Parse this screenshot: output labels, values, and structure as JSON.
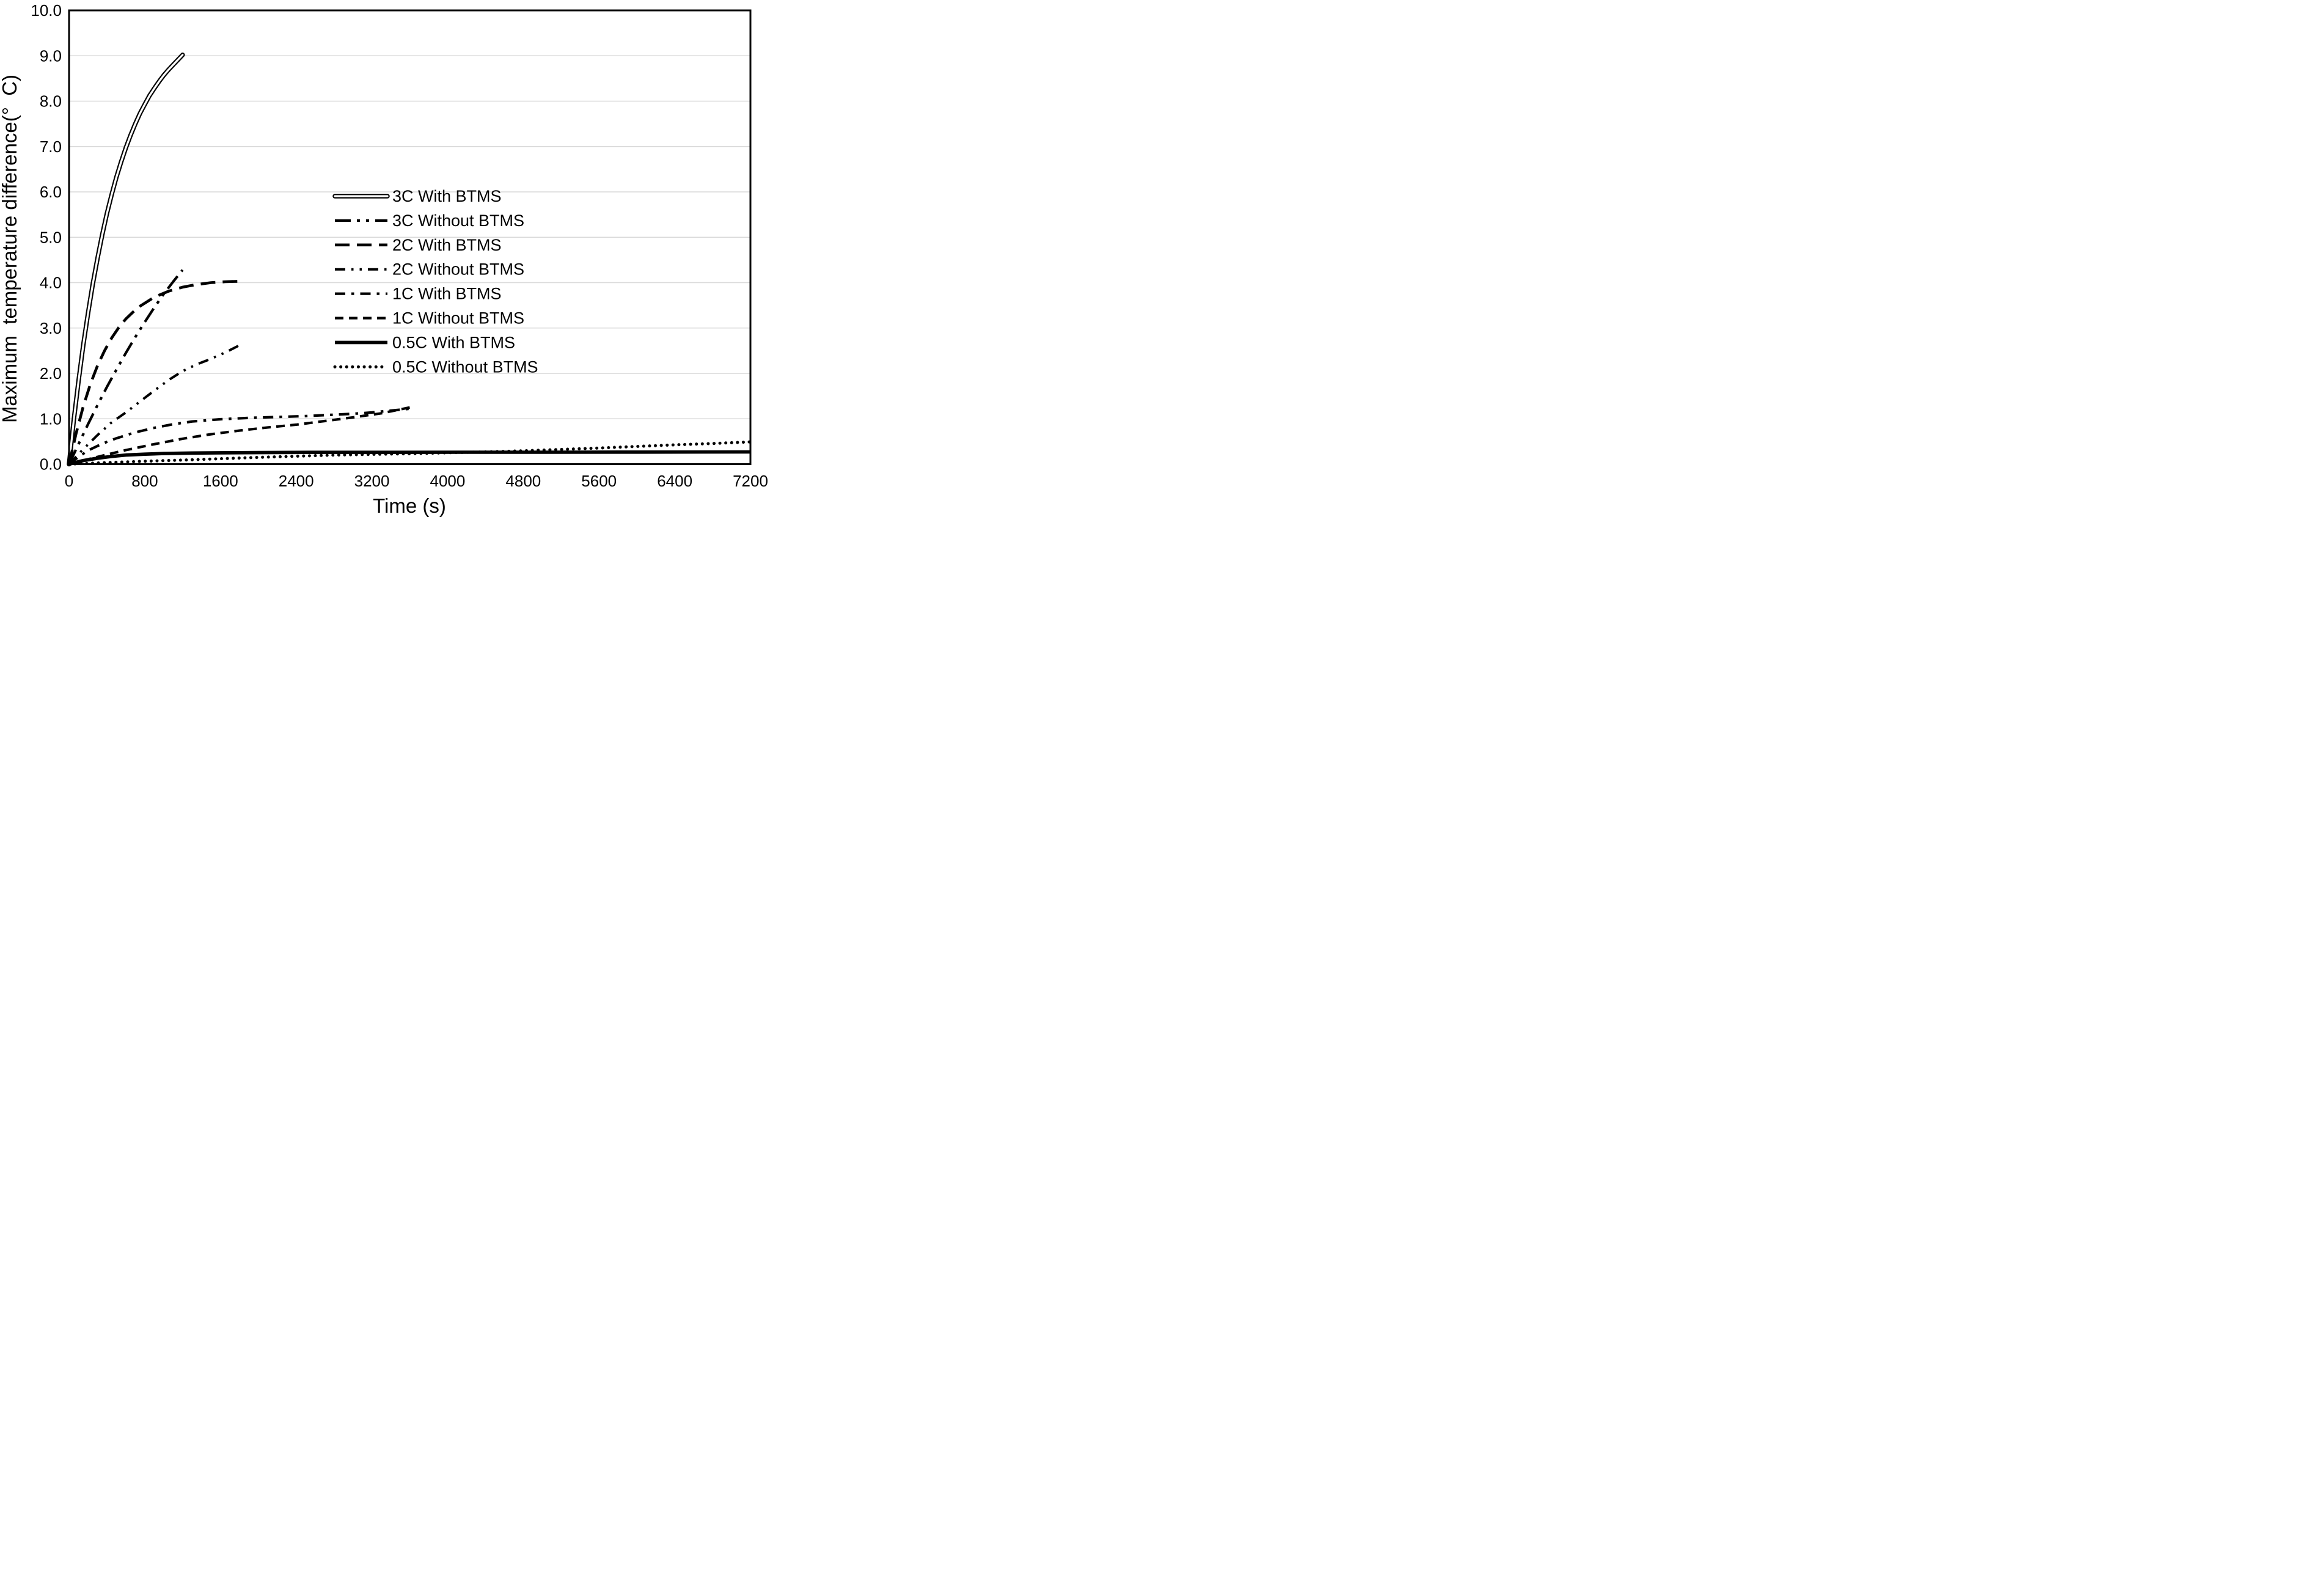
{
  "chart_data": {
    "type": "line",
    "title": "",
    "xlabel": "Time (s)",
    "ylabel": "Maximum  temperature difference(°  C)",
    "xlim": [
      0,
      7200
    ],
    "ylim": [
      0.0,
      10.0
    ],
    "xticks": [
      0,
      800,
      1600,
      2400,
      3200,
      4000,
      4800,
      5600,
      6400,
      7200
    ],
    "xtick_labels": [
      "0",
      "800",
      "1600",
      "2400",
      "3200",
      "4000",
      "4800",
      "5600",
      "6400",
      "7200"
    ],
    "yticks": [
      0,
      1,
      2,
      3,
      4,
      5,
      6,
      7,
      8,
      9,
      10
    ],
    "ytick_labels": [
      "0.0",
      "1.0",
      "2.0",
      "3.0",
      "4.0",
      "5.0",
      "6.0",
      "7.0",
      "8.0",
      "9.0",
      "10.0"
    ],
    "grid": "horizontal",
    "gridline_color": "#D9D9D9",
    "axis_color": "#000000",
    "line_color": "#000000",
    "legend_position": "inside-center-right",
    "series": [
      {
        "name": "3C With BTMS",
        "style": "double-line",
        "points": [
          [
            0,
            0
          ],
          [
            50,
            0.97
          ],
          [
            100,
            1.83
          ],
          [
            150,
            2.62
          ],
          [
            200,
            3.32
          ],
          [
            250,
            3.96
          ],
          [
            300,
            4.53
          ],
          [
            350,
            5.05
          ],
          [
            400,
            5.52
          ],
          [
            450,
            5.94
          ],
          [
            500,
            6.32
          ],
          [
            550,
            6.66
          ],
          [
            600,
            6.97
          ],
          [
            650,
            7.25
          ],
          [
            700,
            7.5
          ],
          [
            750,
            7.73
          ],
          [
            800,
            7.93
          ],
          [
            850,
            8.12
          ],
          [
            900,
            8.28
          ],
          [
            950,
            8.43
          ],
          [
            1000,
            8.57
          ],
          [
            1050,
            8.69
          ],
          [
            1100,
            8.8
          ],
          [
            1150,
            8.91
          ],
          [
            1200,
            9.02
          ]
        ]
      },
      {
        "name": "3C Without BTMS",
        "style": "dash-dot-dot",
        "points": [
          [
            0,
            0
          ],
          [
            100,
            0.44
          ],
          [
            200,
            0.88
          ],
          [
            300,
            1.3
          ],
          [
            400,
            1.7
          ],
          [
            500,
            2.08
          ],
          [
            600,
            2.45
          ],
          [
            700,
            2.8
          ],
          [
            800,
            3.13
          ],
          [
            900,
            3.45
          ],
          [
            1000,
            3.75
          ],
          [
            1100,
            4.02
          ],
          [
            1200,
            4.28
          ]
        ]
      },
      {
        "name": "2C With BTMS",
        "style": "long-dash",
        "points": [
          [
            0,
            0
          ],
          [
            75,
            0.68
          ],
          [
            150,
            1.27
          ],
          [
            225,
            1.76
          ],
          [
            300,
            2.17
          ],
          [
            375,
            2.5
          ],
          [
            450,
            2.78
          ],
          [
            525,
            3.01
          ],
          [
            600,
            3.2
          ],
          [
            675,
            3.35
          ],
          [
            750,
            3.48
          ],
          [
            900,
            3.68
          ],
          [
            1050,
            3.81
          ],
          [
            1200,
            3.9
          ],
          [
            1350,
            3.96
          ],
          [
            1500,
            4.0
          ],
          [
            1650,
            4.02
          ],
          [
            1800,
            4.03
          ]
        ]
      },
      {
        "name": "2C Without BTMS",
        "style": "dash-dot-dot-fine",
        "points": [
          [
            0,
            0
          ],
          [
            150,
            0.33
          ],
          [
            300,
            0.64
          ],
          [
            450,
            0.92
          ],
          [
            600,
            1.14
          ],
          [
            750,
            1.38
          ],
          [
            900,
            1.62
          ],
          [
            1050,
            1.85
          ],
          [
            1200,
            2.05
          ],
          [
            1350,
            2.2
          ],
          [
            1500,
            2.32
          ],
          [
            1650,
            2.46
          ],
          [
            1800,
            2.62
          ]
        ]
      },
      {
        "name": "1C With BTMS",
        "style": "dash-dot",
        "points": [
          [
            0,
            0
          ],
          [
            100,
            0.16
          ],
          [
            200,
            0.3
          ],
          [
            350,
            0.45
          ],
          [
            500,
            0.57
          ],
          [
            700,
            0.7
          ],
          [
            900,
            0.8
          ],
          [
            1100,
            0.88
          ],
          [
            1300,
            0.94
          ],
          [
            1600,
            0.99
          ],
          [
            1900,
            1.02
          ],
          [
            2200,
            1.04
          ],
          [
            2500,
            1.06
          ],
          [
            2800,
            1.09
          ],
          [
            3000,
            1.11
          ],
          [
            3200,
            1.14
          ],
          [
            3400,
            1.18
          ],
          [
            3600,
            1.22
          ]
        ]
      },
      {
        "name": "1C Without BTMS",
        "style": "dash",
        "points": [
          [
            0,
            0
          ],
          [
            300,
            0.16
          ],
          [
            600,
            0.31
          ],
          [
            900,
            0.44
          ],
          [
            1200,
            0.56
          ],
          [
            1500,
            0.66
          ],
          [
            1800,
            0.74
          ],
          [
            2100,
            0.81
          ],
          [
            2400,
            0.87
          ],
          [
            2700,
            0.95
          ],
          [
            3000,
            1.03
          ],
          [
            3300,
            1.12
          ],
          [
            3600,
            1.25
          ]
        ]
      },
      {
        "name": "0.5C With BTMS",
        "style": "solid-thick",
        "points": [
          [
            0,
            0
          ],
          [
            150,
            0.08
          ],
          [
            300,
            0.13
          ],
          [
            450,
            0.17
          ],
          [
            600,
            0.2
          ],
          [
            800,
            0.22
          ],
          [
            1000,
            0.235
          ],
          [
            1300,
            0.245
          ],
          [
            1600,
            0.25
          ],
          [
            2000,
            0.255
          ],
          [
            2600,
            0.26
          ],
          [
            3400,
            0.26
          ],
          [
            4200,
            0.262
          ],
          [
            5000,
            0.263
          ],
          [
            6000,
            0.265
          ],
          [
            7200,
            0.27
          ]
        ]
      },
      {
        "name": "0.5C Without BTMS",
        "style": "dotted",
        "points": [
          [
            0,
            0
          ],
          [
            400,
            0.035
          ],
          [
            800,
            0.065
          ],
          [
            1200,
            0.09
          ],
          [
            1600,
            0.12
          ],
          [
            2000,
            0.15
          ],
          [
            2400,
            0.175
          ],
          [
            2800,
            0.2
          ],
          [
            3200,
            0.215
          ],
          [
            3600,
            0.23
          ],
          [
            4000,
            0.25
          ],
          [
            4400,
            0.27
          ],
          [
            4800,
            0.295
          ],
          [
            5200,
            0.325
          ],
          [
            5600,
            0.355
          ],
          [
            6000,
            0.39
          ],
          [
            6400,
            0.425
          ],
          [
            6800,
            0.455
          ],
          [
            7200,
            0.49
          ]
        ]
      }
    ]
  }
}
